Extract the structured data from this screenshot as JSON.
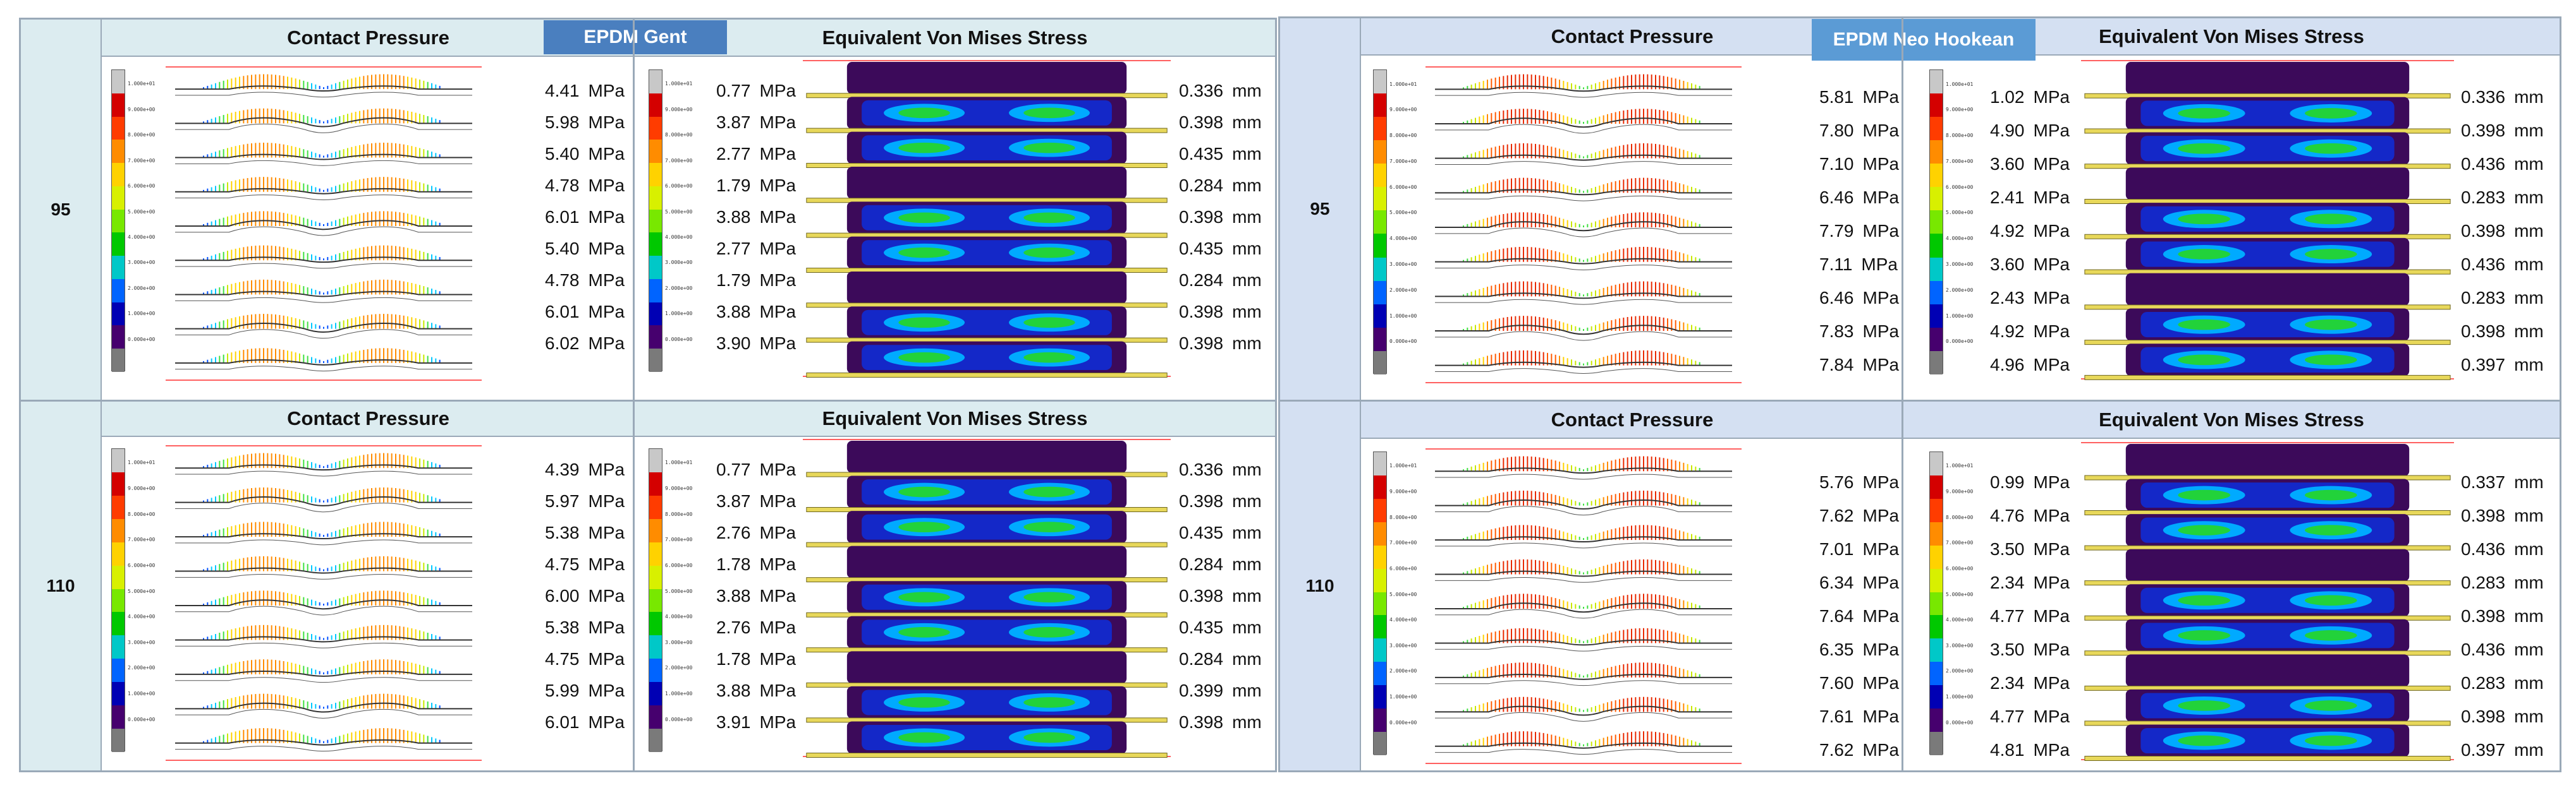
{
  "colors": {
    "gent_header_bg": "#dcecf0",
    "gent_side_bg": "#dcecf0",
    "neo_header_bg": "#d4e0f2",
    "neo_side_bg": "#d4e0f2",
    "gent_badge": "#4a7fbf",
    "neo_badge": "#5b9bd5"
  },
  "panels": {
    "gent": {
      "badge": "EPDM Gent",
      "rows": [
        {
          "label": "95",
          "cp_title": "Contact Pressure",
          "vm_title": "Equivalent Von  Mises Stress",
          "cp_values": [
            "4.41",
            "5.98",
            "5.40",
            "4.78",
            "6.01",
            "5.40",
            "4.78",
            "6.01",
            "6.02"
          ],
          "vm_values": [
            "0.77",
            "3.87",
            "2.77",
            "1.79",
            "3.88",
            "2.77",
            "1.79",
            "3.88",
            "3.90"
          ],
          "disp_values": [
            "0.336",
            "0.398",
            "0.435",
            "0.284",
            "0.398",
            "0.435",
            "0.284",
            "0.398",
            "0.398"
          ]
        },
        {
          "label": "110",
          "cp_title": "Contact Pressure",
          "vm_title": "Equivalent Von  Mises Stress",
          "cp_values": [
            "4.39",
            "5.97",
            "5.38",
            "4.75",
            "6.00",
            "5.38",
            "4.75",
            "5.99",
            "6.01"
          ],
          "vm_values": [
            "0.77",
            "3.87",
            "2.76",
            "1.78",
            "3.88",
            "2.76",
            "1.78",
            "3.88",
            "3.91"
          ],
          "disp_values": [
            "0.336",
            "0.398",
            "0.435",
            "0.284",
            "0.398",
            "0.435",
            "0.284",
            "0.399",
            "0.398"
          ]
        }
      ]
    },
    "neo": {
      "badge": "EPDM Neo Hookean",
      "rows": [
        {
          "label": "95",
          "cp_title": "Contact Pressure",
          "vm_title": "Equivalent Von  Mises Stress",
          "cp_values": [
            "5.81",
            "7.80",
            "7.10",
            "6.46",
            "7.79",
            "7.11",
            "6.46",
            "7.83",
            "7.84"
          ],
          "vm_values": [
            "1.02",
            "4.90",
            "3.60",
            "2.41",
            "4.92",
            "3.60",
            "2.43",
            "4.92",
            "4.96"
          ],
          "disp_values": [
            "0.336",
            "0.398",
            "0.436",
            "0.283",
            "0.398",
            "0.436",
            "0.283",
            "0.398",
            "0.397"
          ]
        },
        {
          "label": "110",
          "cp_title": "Contact Pressure",
          "vm_title": "Equivalent Von  Mises Stress",
          "cp_values": [
            "5.76",
            "7.62",
            "7.01",
            "6.34",
            "7.64",
            "6.35",
            "7.60",
            "7.61",
            "7.62"
          ],
          "vm_values": [
            "0.99",
            "4.76",
            "3.50",
            "2.34",
            "4.77",
            "3.50",
            "2.34",
            "4.77",
            "4.81"
          ],
          "disp_values": [
            "0.337",
            "0.398",
            "0.436",
            "0.283",
            "0.398",
            "0.436",
            "0.283",
            "0.398",
            "0.397"
          ]
        }
      ]
    }
  },
  "units": {
    "pressure": "MPa",
    "length": "mm"
  },
  "legend_ticks": [
    "1.000e+01",
    "9.000e+00",
    "8.000e+00",
    "7.000e+00",
    "6.000e+00",
    "5.000e+00",
    "4.000e+00",
    "3.000e+00",
    "2.000e+00",
    "1.000e+00",
    "0.000e+00"
  ]
}
